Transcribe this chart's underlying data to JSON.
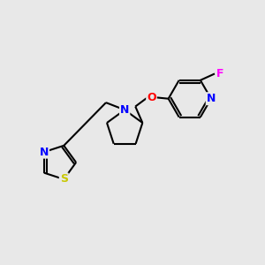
{
  "background_color": "#e8e8e8",
  "bond_color": "#000000",
  "atom_colors": {
    "N": "#0000ff",
    "O": "#ff0000",
    "F": "#ff00ff",
    "S": "#c8c800",
    "C": "#000000"
  },
  "line_width": 1.5,
  "figsize": [
    3.0,
    3.0
  ],
  "dpi": 100
}
